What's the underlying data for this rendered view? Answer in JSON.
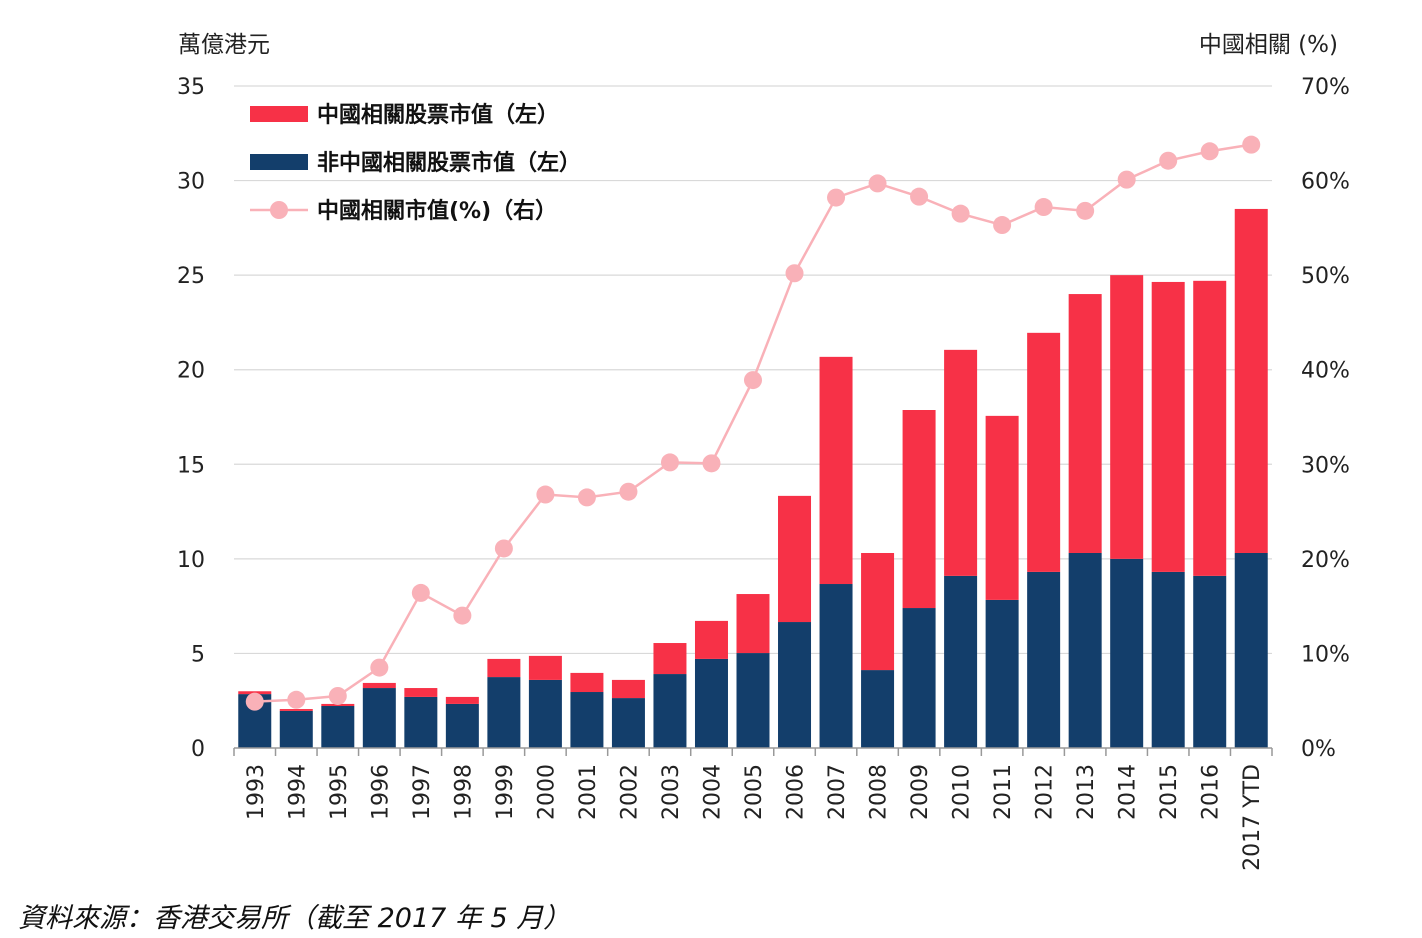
{
  "chart_data": {
    "type": "bar",
    "stacked": true,
    "left_axis_label": "萬億港元",
    "right_axis_label": "中國相關 (%)",
    "left_ylim": [
      0,
      35
    ],
    "right_ylim": [
      0,
      70
    ],
    "left_ticks": [
      "0",
      "5",
      "10",
      "15",
      "20",
      "25",
      "30",
      "35"
    ],
    "right_ticks": [
      "0%",
      "10%",
      "20%",
      "30%",
      "40%",
      "50%",
      "60%",
      "70%"
    ],
    "grid": true,
    "legend_position": "top-left",
    "categories": [
      "1993",
      "1994",
      "1995",
      "1996",
      "1997",
      "1998",
      "1999",
      "2000",
      "2001",
      "2002",
      "2003",
      "2004",
      "2005",
      "2006",
      "2007",
      "2008",
      "2009",
      "2010",
      "2011",
      "2012",
      "2013",
      "2014",
      "2015",
      "2016",
      "2017 YTD"
    ],
    "series": [
      {
        "name": "非中國相關股票市值（左）",
        "type": "bar",
        "axis": "left",
        "color": "#133e6b",
        "values": [
          2.85,
          1.96,
          2.22,
          3.17,
          2.7,
          2.33,
          3.75,
          3.6,
          2.96,
          2.64,
          3.91,
          4.71,
          5.02,
          6.66,
          8.67,
          4.12,
          7.4,
          9.1,
          7.83,
          9.31,
          10.31,
          10.0,
          9.31,
          9.1,
          10.31
        ]
      },
      {
        "name": "中國相關股票市值（左）",
        "type": "bar",
        "axis": "left",
        "color": "#f73147",
        "values": [
          0.15,
          0.1,
          0.11,
          0.27,
          0.47,
          0.37,
          0.96,
          1.27,
          1.01,
          0.96,
          1.64,
          2.01,
          3.12,
          6.67,
          12.01,
          6.19,
          10.47,
          11.95,
          9.73,
          12.64,
          13.69,
          15.0,
          15.33,
          15.6,
          18.19
        ]
      },
      {
        "name": "中國相關市值(%)（右）",
        "type": "line",
        "axis": "right",
        "color": "#f9b1b8",
        "values": [
          4.9,
          5.1,
          5.5,
          8.5,
          16.4,
          14.0,
          21.1,
          26.8,
          26.5,
          27.1,
          30.2,
          30.1,
          38.9,
          50.2,
          58.2,
          59.7,
          58.3,
          56.5,
          55.3,
          57.2,
          56.8,
          60.1,
          62.1,
          63.1,
          63.8
        ]
      }
    ],
    "legend": [
      {
        "label": "中國相關股票市值（左）",
        "color": "#f73147",
        "kind": "bar"
      },
      {
        "label": "非中國相關股票市值（左）",
        "color": "#133e6b",
        "kind": "bar"
      },
      {
        "label": "中國相關市值(%)（右）",
        "color": "#f9b1b8",
        "kind": "line"
      }
    ]
  },
  "source_note": "資料來源：香港交易所（截至 2017 年 5 月）"
}
